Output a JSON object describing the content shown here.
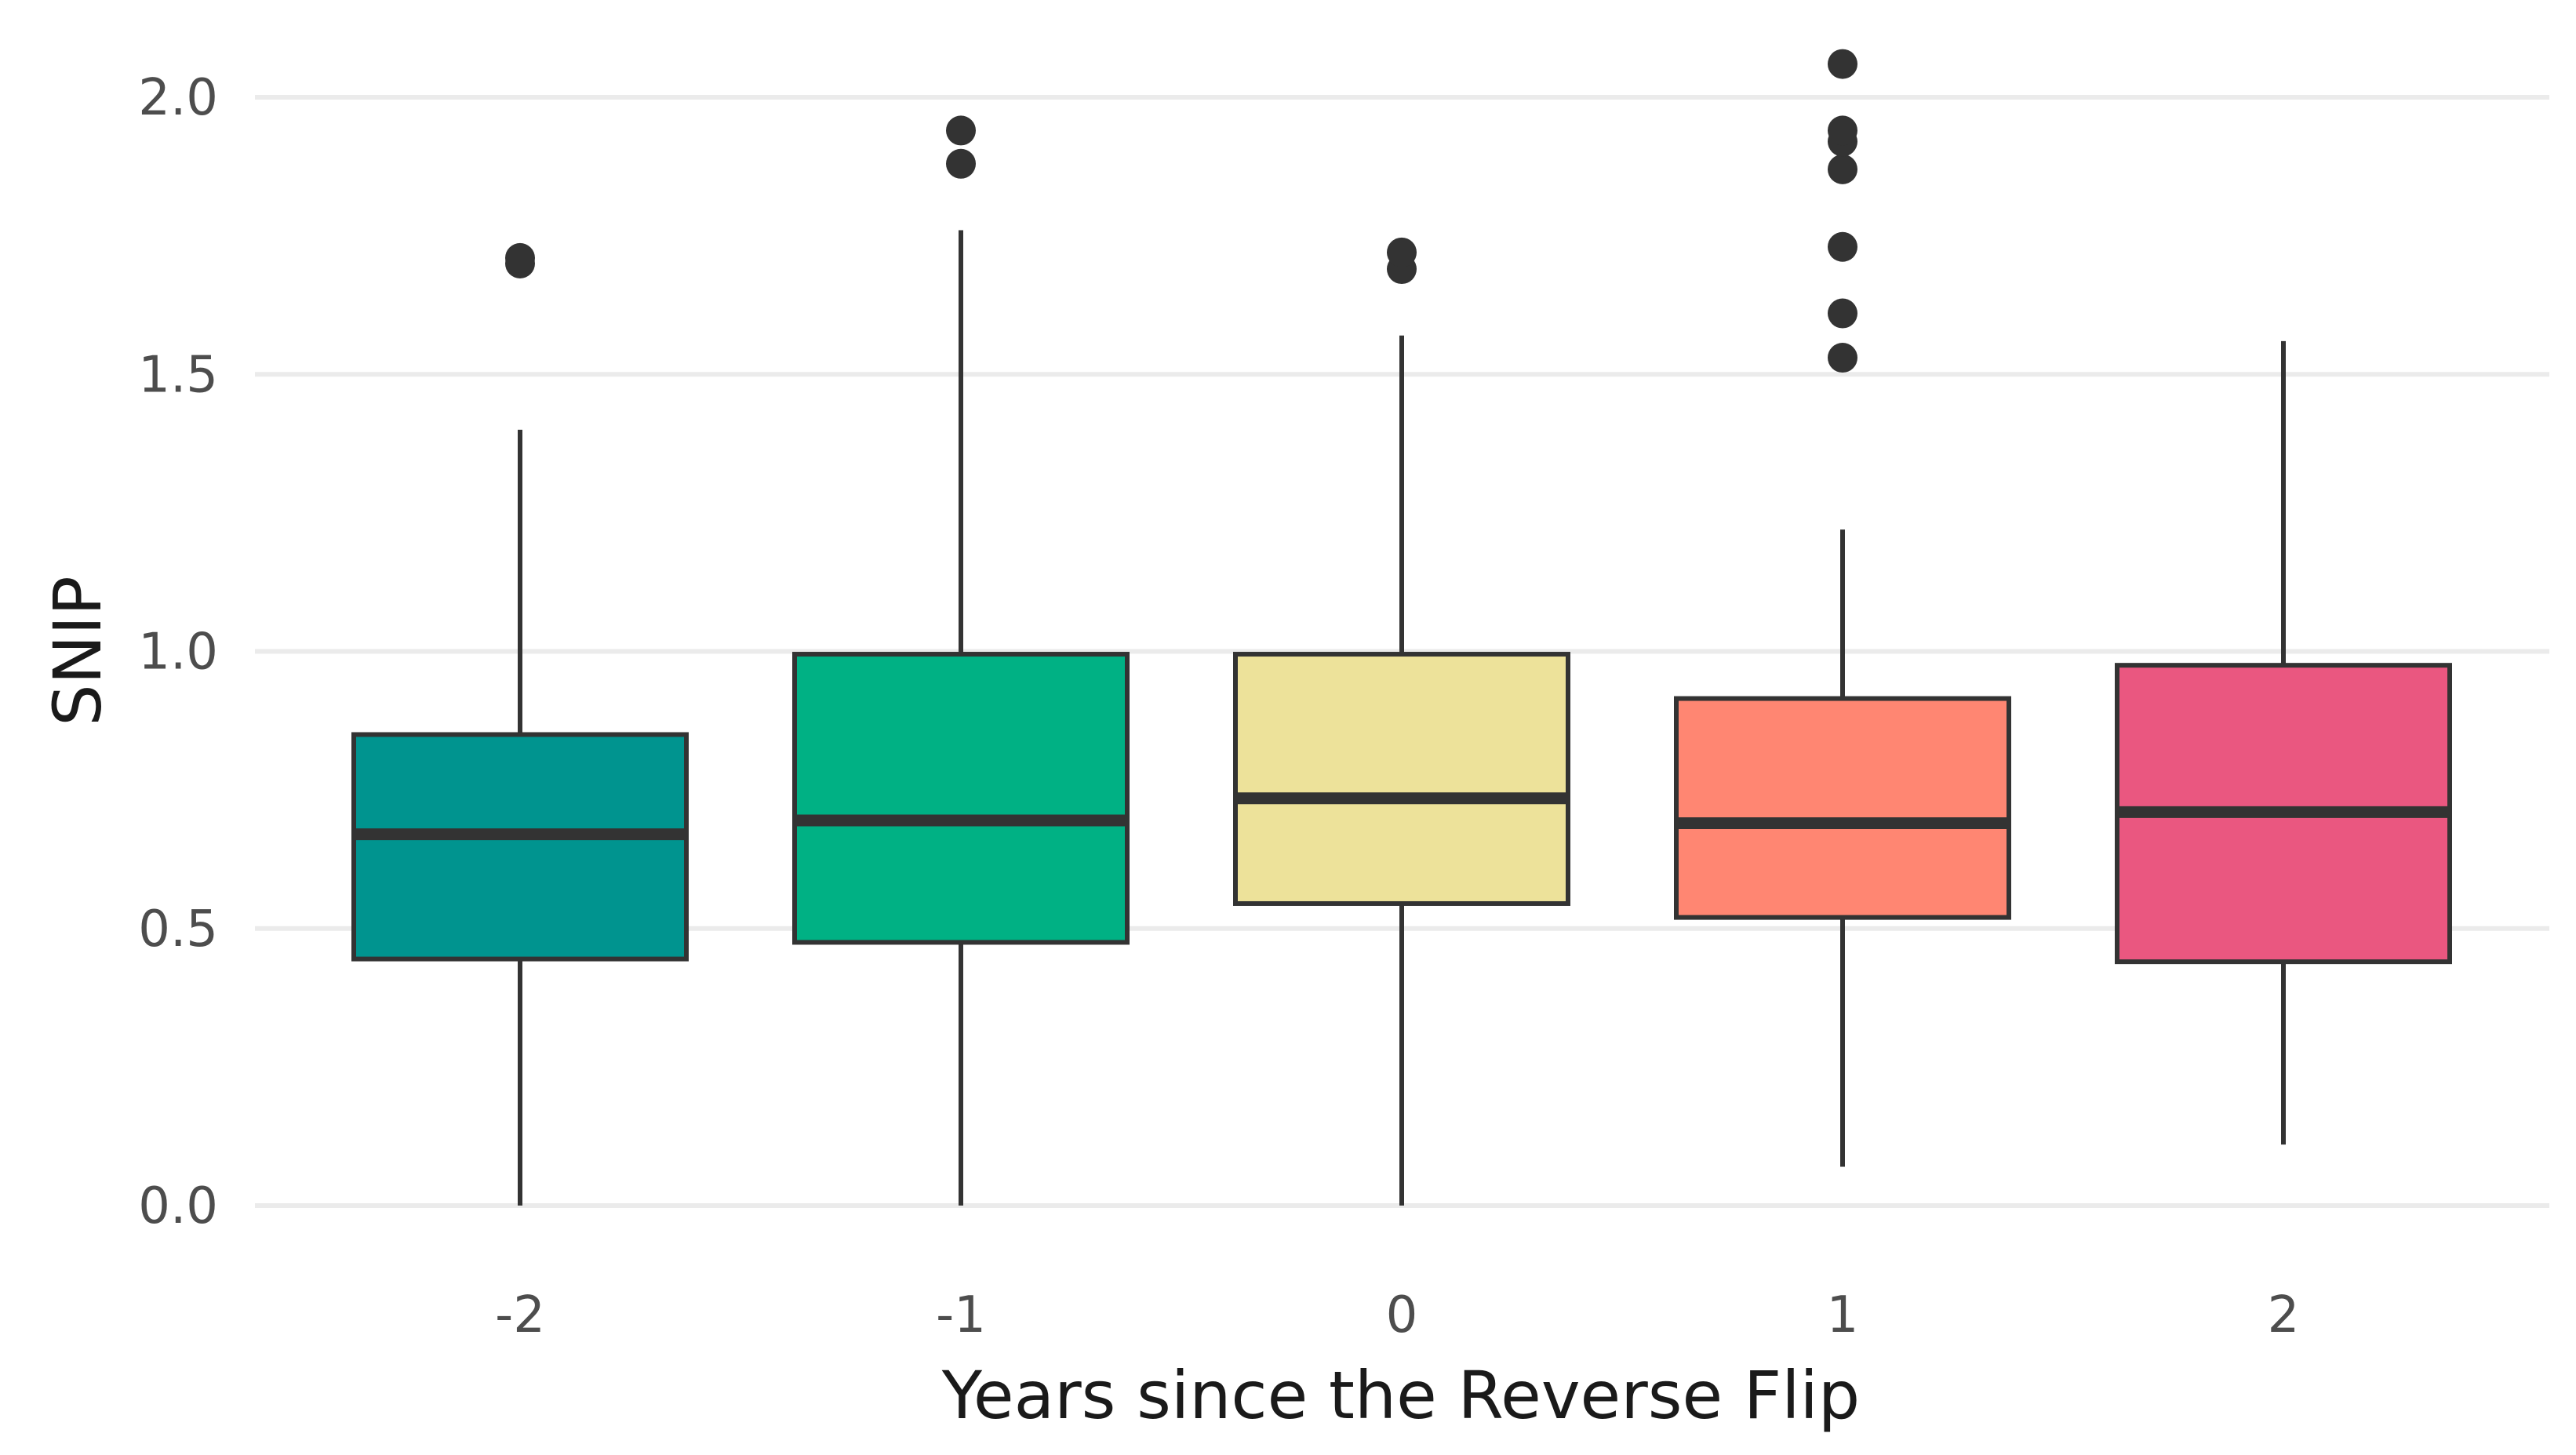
{
  "chart_data": {
    "type": "box",
    "title": "",
    "xlabel": "Years since the Reverse Flip",
    "ylabel": "SNIP",
    "ylim": [
      0.0,
      2.1
    ],
    "yticks": [
      "0.0",
      "0.5",
      "1.0",
      "1.5",
      "2.0"
    ],
    "grid": "horizontal",
    "categories": [
      "-2",
      "-1",
      "0",
      "1",
      "2"
    ],
    "boxes": [
      {
        "category": "-2",
        "color": "#00948F",
        "whisker_low": 0.0,
        "q1": 0.445,
        "median": 0.67,
        "q3": 0.85,
        "whisker_high": 1.4,
        "outliers": [
          1.7,
          1.71
        ]
      },
      {
        "category": "-1",
        "color": "#00B184",
        "whisker_low": 0.0,
        "q1": 0.475,
        "median": 0.695,
        "q3": 0.995,
        "whisker_high": 1.76,
        "outliers": [
          1.88,
          1.94
        ]
      },
      {
        "category": "0",
        "color": "#EDE29A",
        "whisker_low": 0.0,
        "q1": 0.545,
        "median": 0.735,
        "q3": 0.995,
        "whisker_high": 1.57,
        "outliers": [
          1.69,
          1.72
        ]
      },
      {
        "category": "1",
        "color": "#FF8672",
        "whisker_low": 0.07,
        "q1": 0.52,
        "median": 0.69,
        "q3": 0.915,
        "whisker_high": 1.22,
        "outliers": [
          1.53,
          1.61,
          1.73,
          1.87,
          1.92,
          1.94,
          2.06
        ]
      },
      {
        "category": "2",
        "color": "#EA5780",
        "whisker_low": 0.11,
        "q1": 0.44,
        "median": 0.71,
        "q3": 0.975,
        "whisker_high": 1.56,
        "outliers": []
      }
    ]
  }
}
